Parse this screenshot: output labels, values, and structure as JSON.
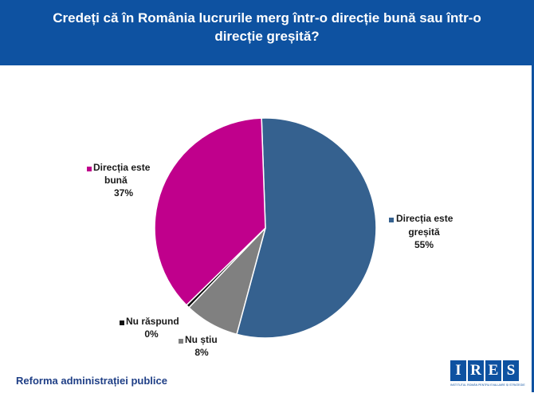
{
  "header": {
    "title_line1": "Credeți că în România lucrurile merg într-o direcție bună sau într-o",
    "title_line2": "direcție greșită?"
  },
  "footer": {
    "text": "Reforma administrației publice"
  },
  "logo": {
    "letters": [
      "I",
      "R",
      "E",
      "S"
    ],
    "subtitle": "INSTITUTUL ROMÂN PENTRU EVALUARE ȘI STRATEGIE"
  },
  "colors": {
    "header_bg": "#0e52a1",
    "footer_text": "#1f3f86"
  },
  "chart_data": {
    "type": "pie",
    "title": "Credeți că în România lucrurile merg într-o direcție bună sau într-o direcție greșită?",
    "slices": [
      {
        "label_lines": [
          "Direcția este",
          "greșită"
        ],
        "value": 55,
        "pct": "55%",
        "color": "#35618f"
      },
      {
        "label_lines": [
          "Nu știu"
        ],
        "value": 8,
        "pct": "8%",
        "color": "#808080"
      },
      {
        "label_lines": [
          "Nu răspund"
        ],
        "value": 0.5,
        "pct": "0%",
        "color": "#111111"
      },
      {
        "label_lines": [
          "Direcția este",
          "bună"
        ],
        "value": 37,
        "pct": "37%",
        "color": "#c0008c"
      }
    ]
  }
}
